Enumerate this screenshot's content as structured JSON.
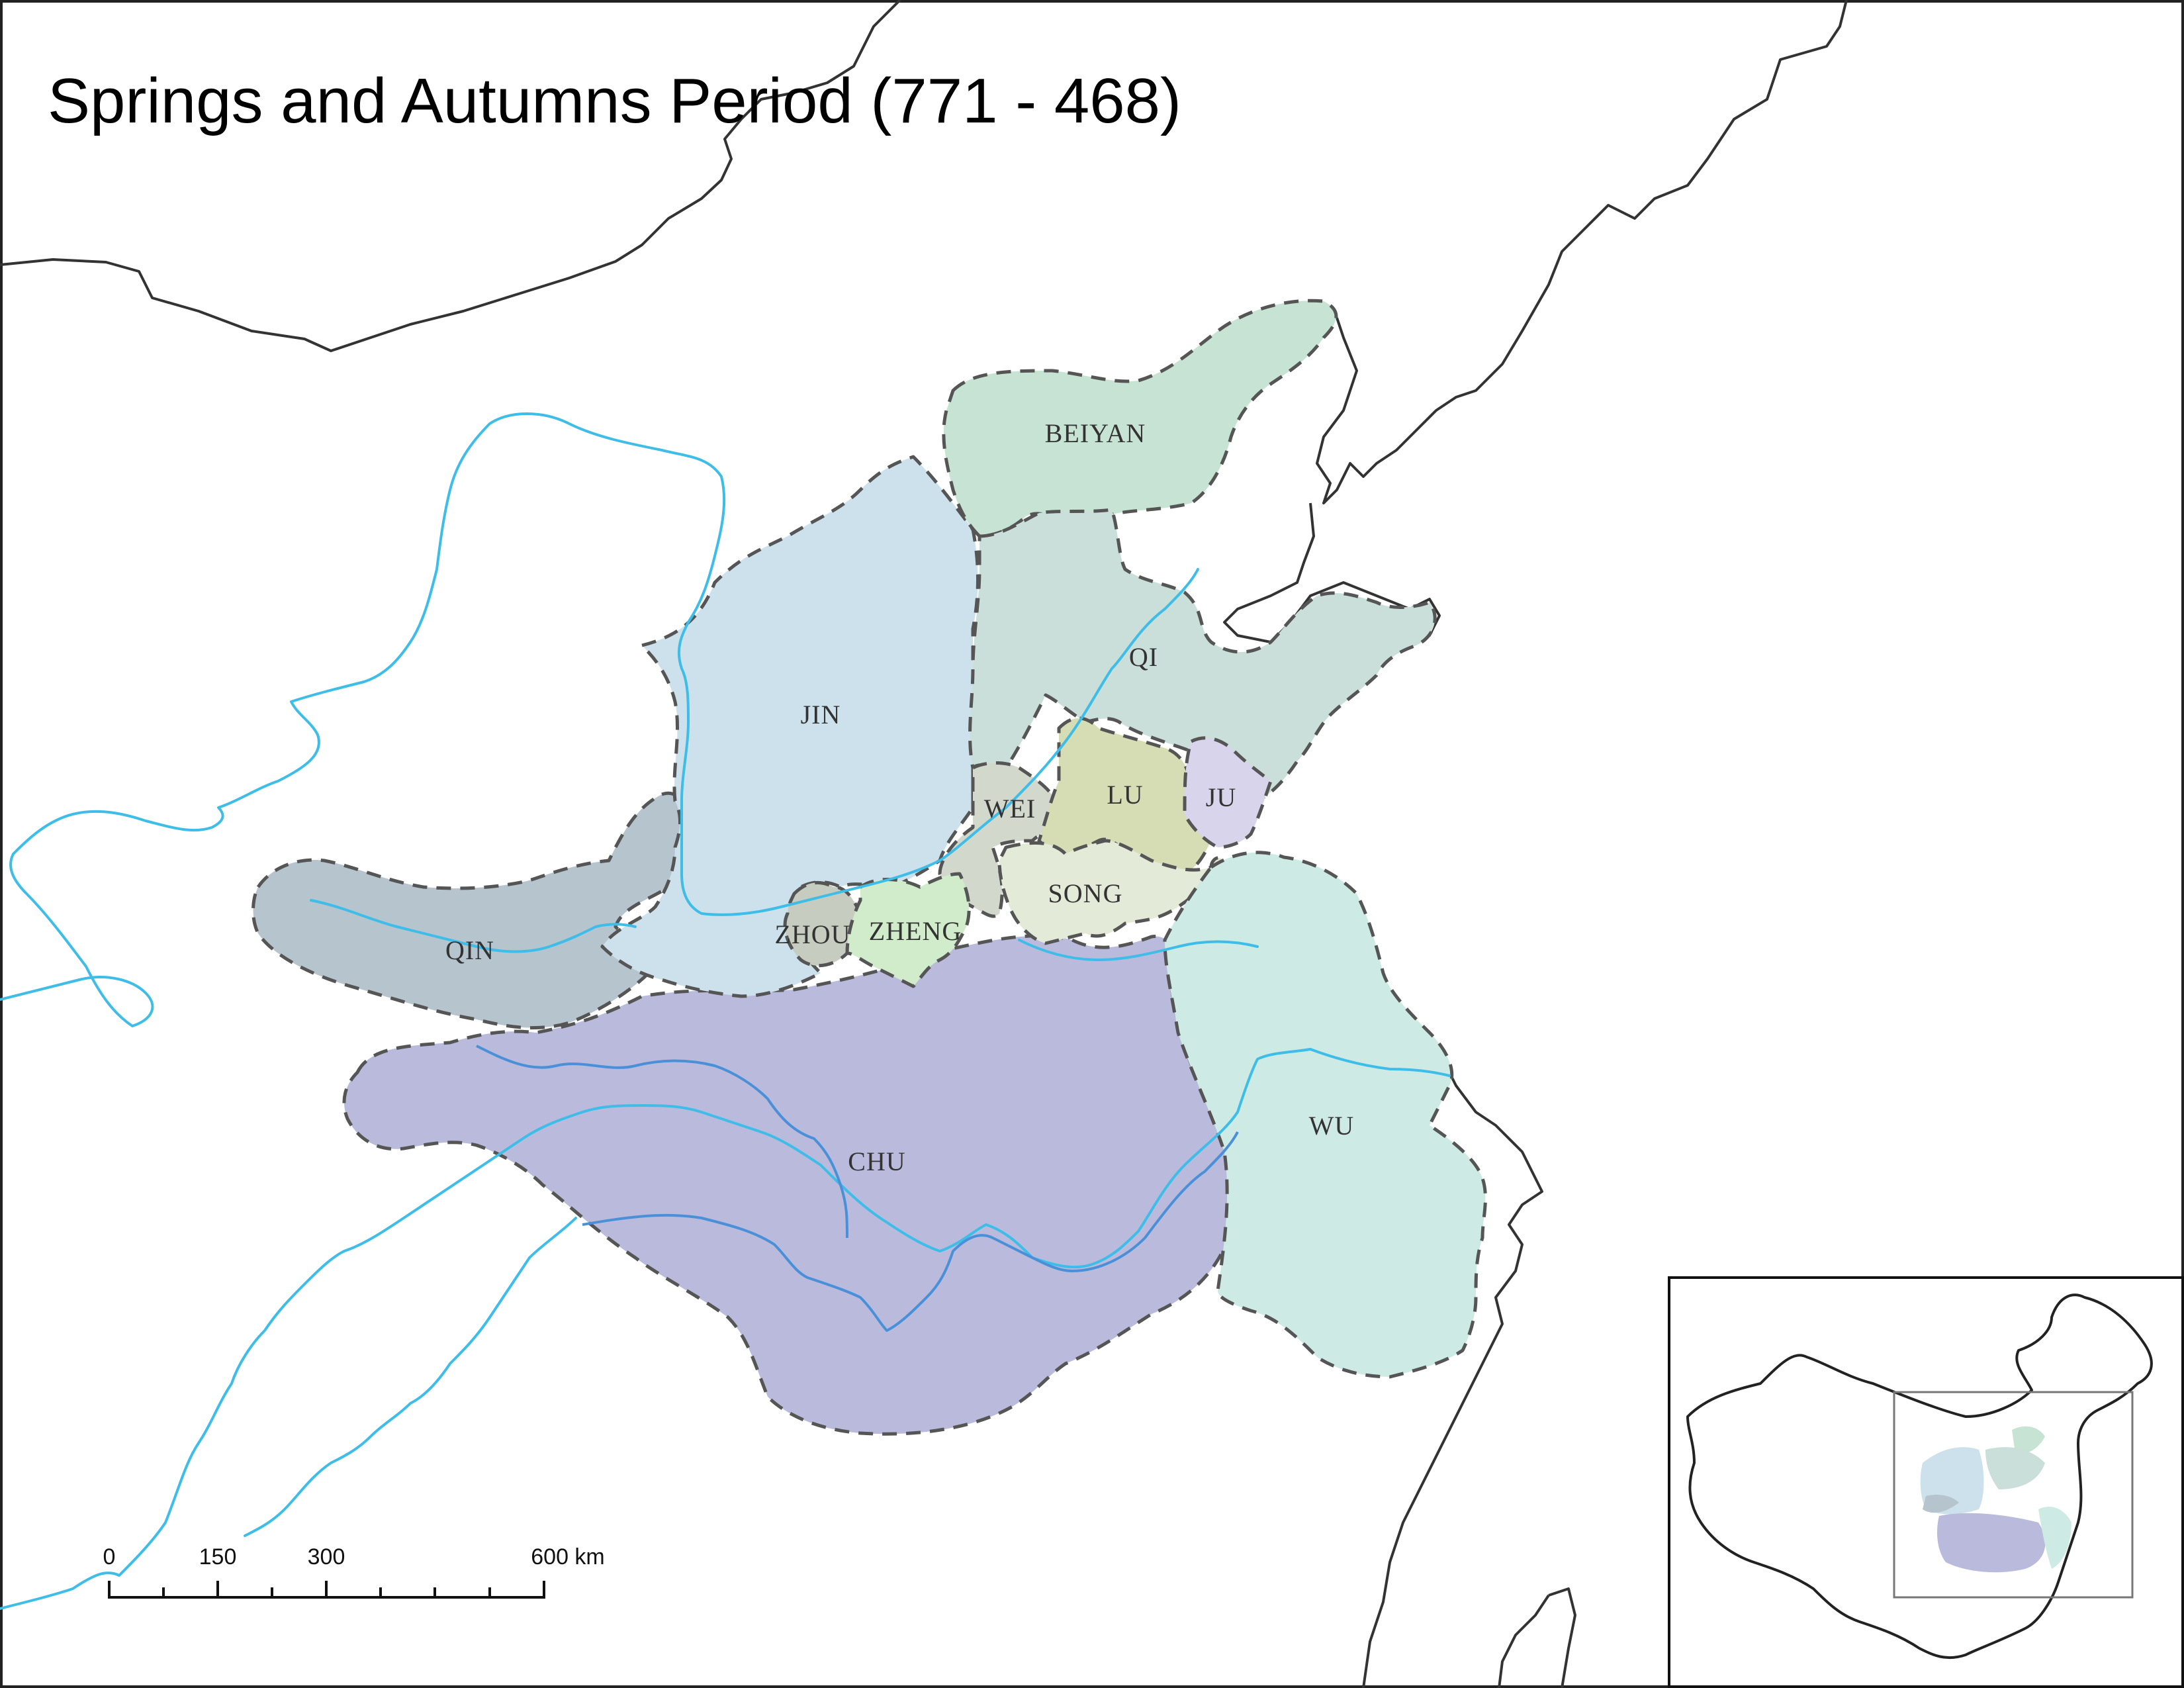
{
  "map": {
    "title": "Springs and Autumns Period (771 - 468)",
    "colors": {
      "beiyan": "#c7e3d4",
      "jin": "#cde1ec",
      "qi": "#cadfd9",
      "qin": "#b6c4ce",
      "chu": "#babbdc",
      "wu": "#cdebe4",
      "lu": "#d6dcb4",
      "song": "#e3ead7",
      "wei": "#d3d8cd",
      "ju": "#d7d4ec",
      "zhou": "#c6ccbf",
      "zheng": "#d0ecca",
      "river": "#3dbde8",
      "coast": "#333333"
    },
    "states": [
      {
        "id": "beiyan",
        "label": "BEIYAN"
      },
      {
        "id": "jin",
        "label": "JIN"
      },
      {
        "id": "qi",
        "label": "QI"
      },
      {
        "id": "wei",
        "label": "WEI"
      },
      {
        "id": "lu",
        "label": "LU"
      },
      {
        "id": "ju",
        "label": "JU"
      },
      {
        "id": "song",
        "label": "SONG"
      },
      {
        "id": "qin",
        "label": "QIN"
      },
      {
        "id": "zhou",
        "label": "ZHOU"
      },
      {
        "id": "zheng",
        "label": "ZHENG"
      },
      {
        "id": "chu",
        "label": "CHU"
      },
      {
        "id": "wu",
        "label": "WU"
      }
    ],
    "scale_bar": {
      "ticks": [
        "0",
        "150",
        "300",
        "600 km"
      ]
    },
    "inset": {
      "description": "locator map of China"
    }
  }
}
